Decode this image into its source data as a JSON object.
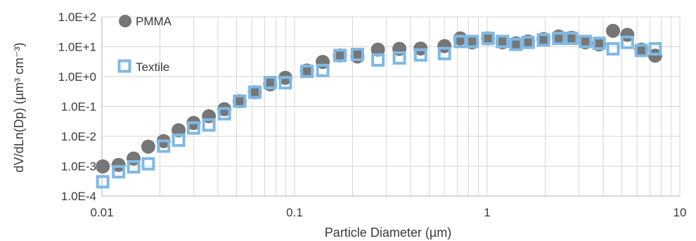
{
  "chart_data": {
    "type": "scatter",
    "xlabel": "Particle Diameter (µm)",
    "ylabel": "dV/dLn(Dp) (µm³ cm⁻³)",
    "x_scale": "log",
    "y_scale": "log",
    "xlim": [
      0.01,
      10
    ],
    "ylim": [
      0.0001,
      100
    ],
    "x_ticks": [
      {
        "value": 0.01,
        "label": "0.01"
      },
      {
        "value": 0.1,
        "label": "0.1"
      },
      {
        "value": 1,
        "label": "1"
      },
      {
        "value": 10,
        "label": "10"
      }
    ],
    "y_ticks": [
      {
        "value": 0.0001,
        "label": "1.0E-4"
      },
      {
        "value": 0.001,
        "label": "1.0E-3"
      },
      {
        "value": 0.01,
        "label": "1.0E-2"
      },
      {
        "value": 0.1,
        "label": "1.0E-1"
      },
      {
        "value": 1,
        "label": "1.0E+0"
      },
      {
        "value": 10,
        "label": "1.0E+1"
      },
      {
        "value": 100,
        "label": "1.0E+2"
      }
    ],
    "grid": true,
    "legend_position": "top-left",
    "series": [
      {
        "name": "PMMA",
        "marker": "circle",
        "color": "#767676",
        "points": [
          [
            0.0101,
            0.00098
          ],
          [
            0.0122,
            0.0011
          ],
          [
            0.0146,
            0.0018
          ],
          [
            0.0174,
            0.0045
          ],
          [
            0.0209,
            0.0069
          ],
          [
            0.025,
            0.016
          ],
          [
            0.0299,
            0.028
          ],
          [
            0.0359,
            0.047
          ],
          [
            0.0432,
            0.081
          ],
          [
            0.0519,
            0.15
          ],
          [
            0.0622,
            0.3
          ],
          [
            0.0747,
            0.55
          ],
          [
            0.0896,
            0.91
          ],
          [
            0.116,
            1.6
          ],
          [
            0.14,
            3.1
          ],
          [
            0.172,
            5.1
          ],
          [
            0.212,
            4.7
          ],
          [
            0.271,
            8.0
          ],
          [
            0.35,
            8.5
          ],
          [
            0.451,
            8.7
          ],
          [
            0.6,
            10.5
          ],
          [
            0.725,
            19.0
          ],
          [
            0.835,
            14.0
          ],
          [
            1.01,
            19.0
          ],
          [
            1.2,
            14.0
          ],
          [
            1.41,
            13.0
          ],
          [
            1.63,
            15.0
          ],
          [
            1.96,
            18.0
          ],
          [
            2.35,
            22.0
          ],
          [
            2.74,
            20.0
          ],
          [
            3.23,
            14.0
          ],
          [
            3.81,
            12.0
          ],
          [
            4.5,
            34.0
          ],
          [
            5.34,
            25.0
          ],
          [
            6.31,
            8.0
          ],
          [
            7.45,
            5.0
          ]
        ]
      },
      {
        "name": "Textile",
        "marker": "square",
        "color": "#7fb9e4",
        "points": [
          [
            0.0101,
            0.0003
          ],
          [
            0.0122,
            0.00065
          ],
          [
            0.0146,
            0.00095
          ],
          [
            0.0174,
            0.0012
          ],
          [
            0.0209,
            0.0047
          ],
          [
            0.025,
            0.0074
          ],
          [
            0.0299,
            0.019
          ],
          [
            0.0359,
            0.024
          ],
          [
            0.0432,
            0.057
          ],
          [
            0.0519,
            0.15
          ],
          [
            0.0622,
            0.3
          ],
          [
            0.0747,
            0.63
          ],
          [
            0.0896,
            0.62
          ],
          [
            0.116,
            1.5
          ],
          [
            0.14,
            1.6
          ],
          [
            0.172,
            5.1
          ],
          [
            0.212,
            5.5
          ],
          [
            0.271,
            3.6
          ],
          [
            0.35,
            4.2
          ],
          [
            0.451,
            5.3
          ],
          [
            0.6,
            5.9
          ],
          [
            0.725,
            15.0
          ],
          [
            0.835,
            15.0
          ],
          [
            1.01,
            19.0
          ],
          [
            1.2,
            15.0
          ],
          [
            1.41,
            12.0
          ],
          [
            1.63,
            14.0
          ],
          [
            1.96,
            17.0
          ],
          [
            2.35,
            19.0
          ],
          [
            2.74,
            19.0
          ],
          [
            3.23,
            15.0
          ],
          [
            3.81,
            13.0
          ],
          [
            4.5,
            8.5
          ],
          [
            5.34,
            14.0
          ],
          [
            6.31,
            7.5
          ],
          [
            7.45,
            8.5
          ]
        ]
      }
    ]
  }
}
